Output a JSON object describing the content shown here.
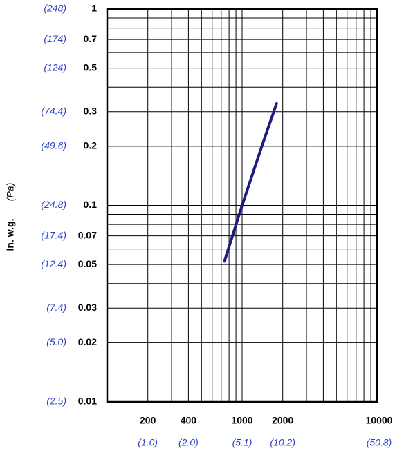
{
  "chart_data": {
    "type": "line",
    "y_label": "in. w.g.",
    "y_label_secondary": "(Pa)",
    "x": [
      740,
      1000,
      1400,
      1800
    ],
    "series": [
      {
        "color": "#1c1c7e",
        "values": [
          0.052,
          0.1,
          0.2,
          0.33
        ]
      }
    ],
    "log_x": true,
    "log_y": true,
    "grid": true,
    "xlim": [
      100,
      10000
    ],
    "ylim": [
      0.01,
      1
    ],
    "xticks": [
      200,
      400,
      1000,
      2000,
      10000
    ],
    "xticks_secondary": [
      {
        "value": 200,
        "label": "(1.0)"
      },
      {
        "value": 400,
        "label": "(2.0)"
      },
      {
        "value": 1000,
        "label": "(5.1)"
      },
      {
        "value": 2000,
        "label": "(10.2)"
      },
      {
        "value": 10000,
        "label": "(50.8)"
      }
    ],
    "xgrid": [
      100,
      200,
      300,
      400,
      500,
      600,
      700,
      800,
      900,
      1000,
      2000,
      3000,
      4000,
      5000,
      6000,
      7000,
      8000,
      9000,
      10000
    ],
    "yticks": [
      1,
      0.7,
      0.5,
      0.3,
      0.2,
      0.1,
      0.07,
      0.05,
      0.03,
      0.02,
      0.01
    ],
    "yticks_secondary": [
      {
        "value": 1,
        "label": "(248)"
      },
      {
        "value": 0.7,
        "label": "(174)"
      },
      {
        "value": 0.5,
        "label": "(124)"
      },
      {
        "value": 0.3,
        "label": "(74.4)"
      },
      {
        "value": 0.2,
        "label": "(49.6)"
      },
      {
        "value": 0.1,
        "label": "(24.8)"
      },
      {
        "value": 0.07,
        "label": "(17.4)"
      },
      {
        "value": 0.05,
        "label": "(12.4)"
      },
      {
        "value": 0.03,
        "label": "(7.4)"
      },
      {
        "value": 0.02,
        "label": "(5.0)"
      },
      {
        "value": 0.01,
        "label": "(2.5)"
      }
    ],
    "ygrid": [
      0.01,
      0.02,
      0.03,
      0.04,
      0.05,
      0.06,
      0.07,
      0.08,
      0.09,
      0.1,
      0.2,
      0.3,
      0.4,
      0.5,
      0.6,
      0.7,
      0.8,
      0.9,
      1
    ]
  }
}
